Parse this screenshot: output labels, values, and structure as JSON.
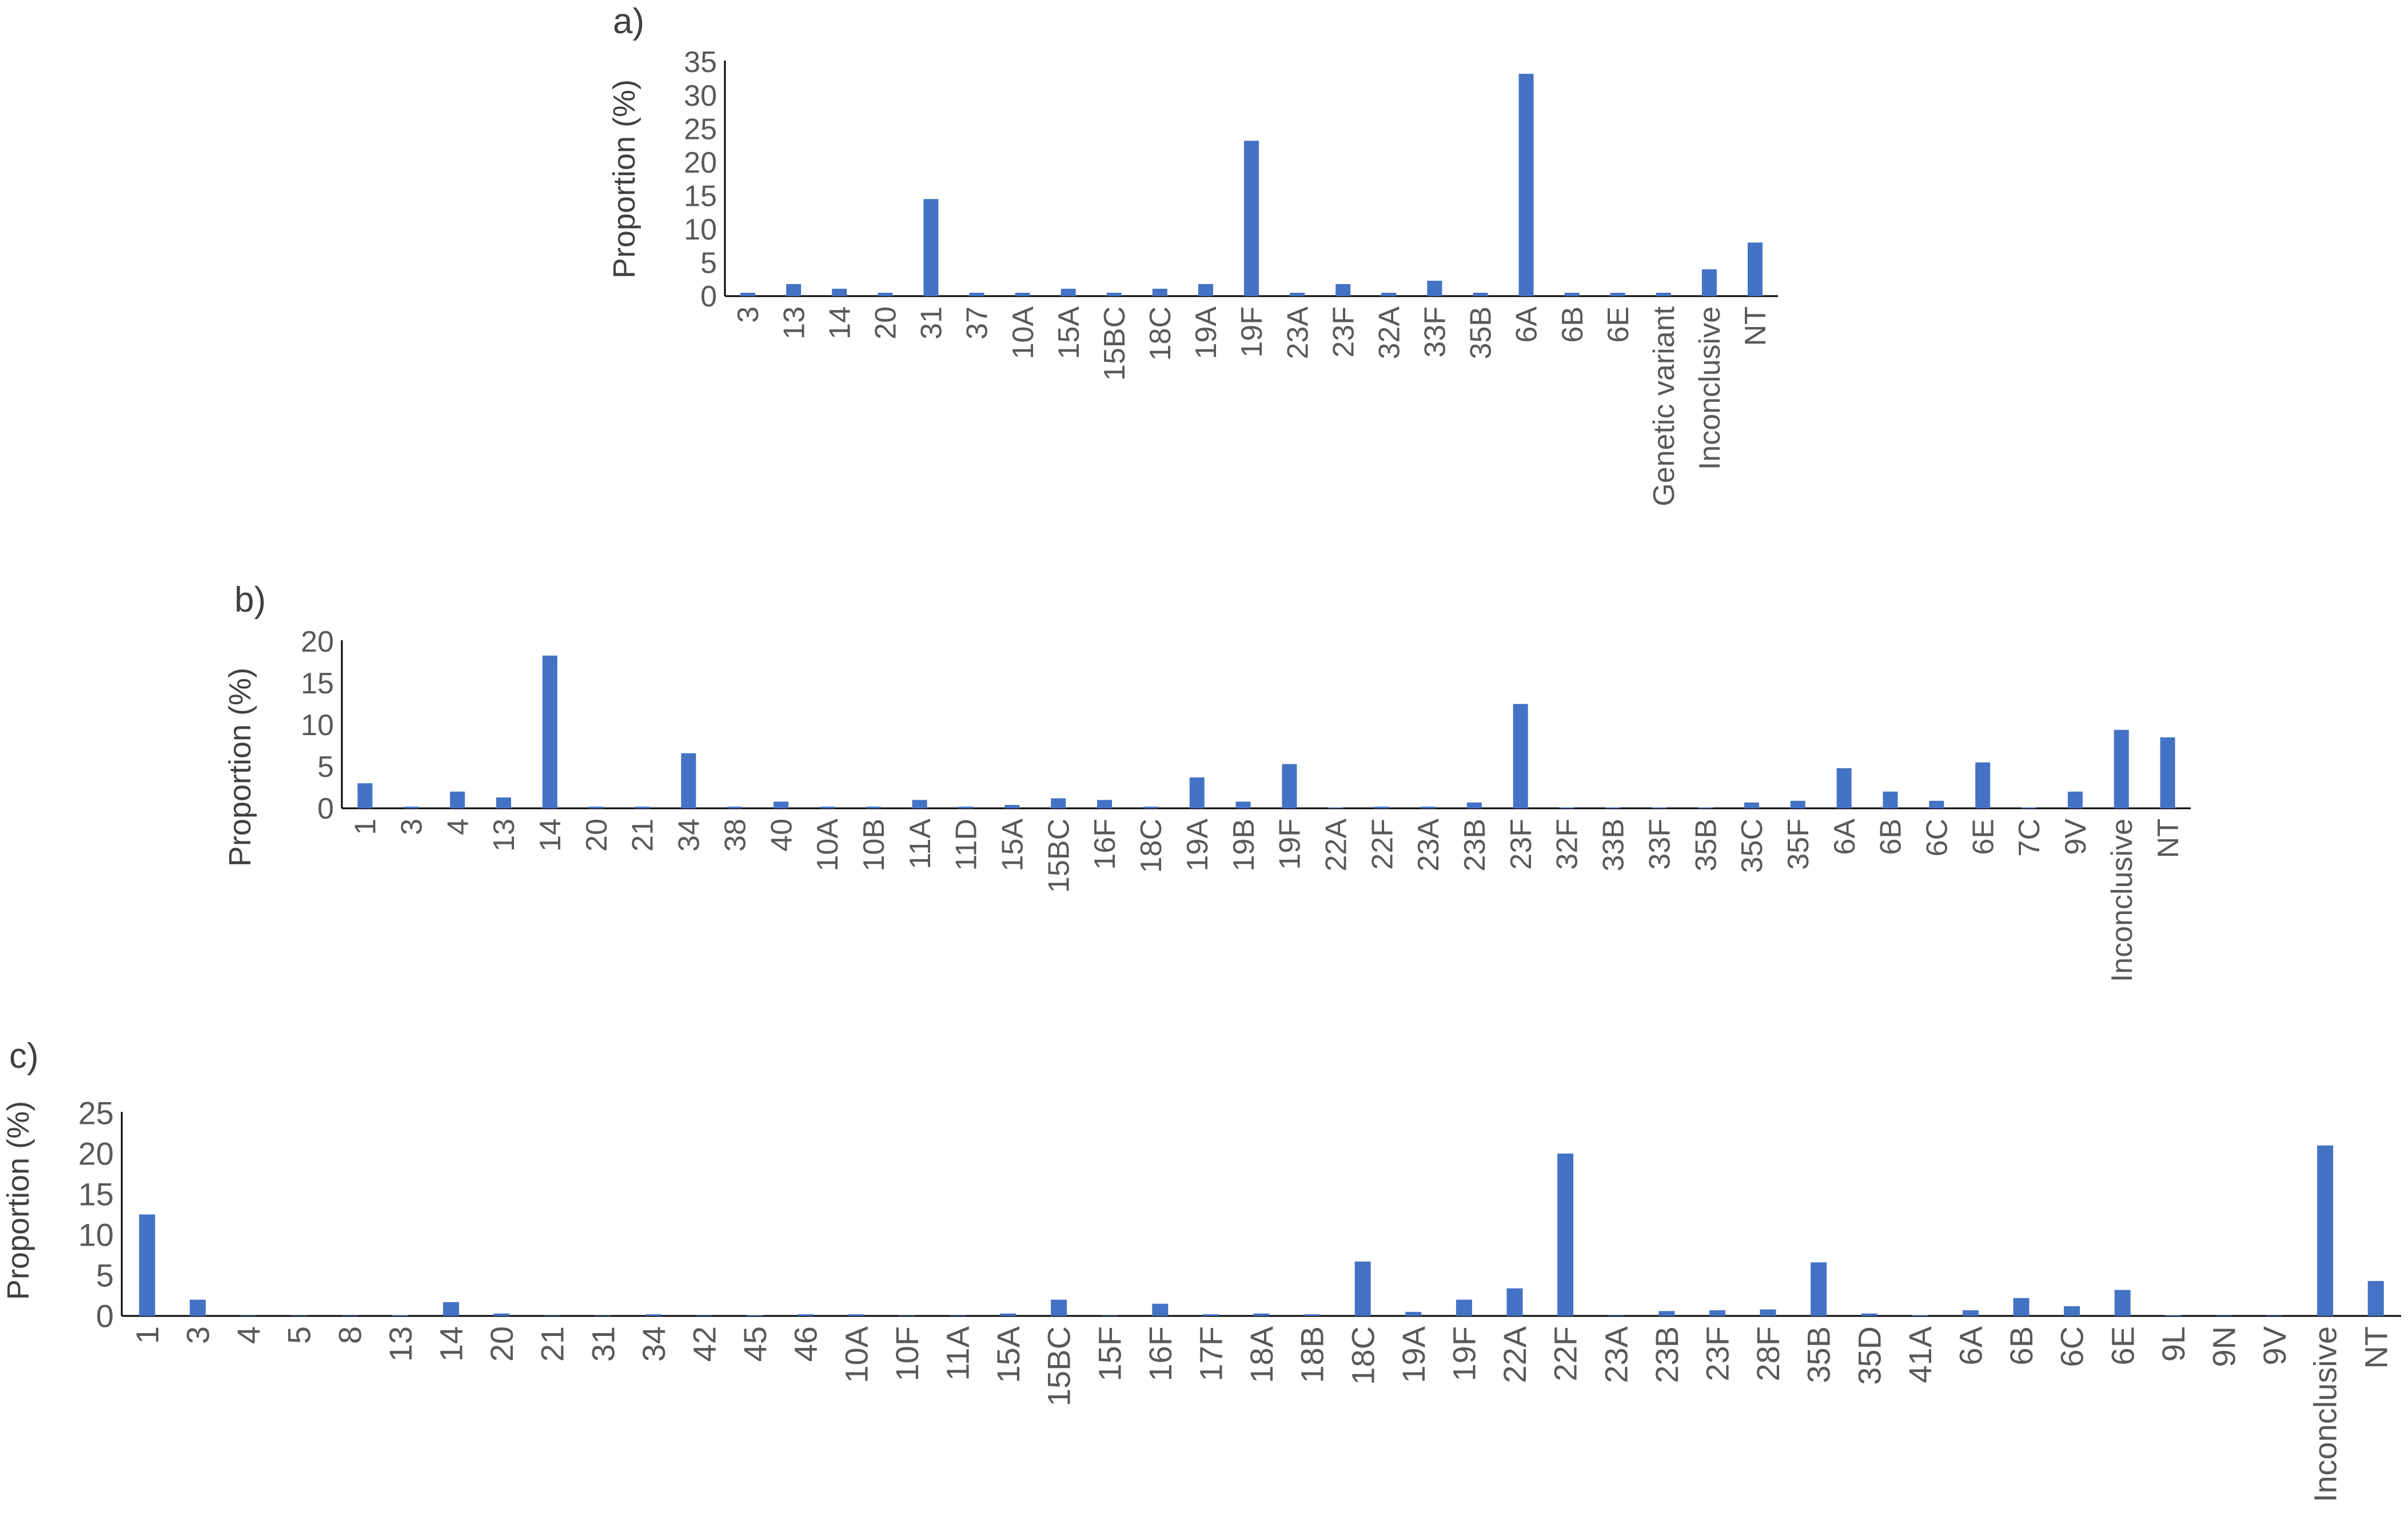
{
  "chart_data": [
    {
      "type": "bar",
      "panel_label": "a)",
      "ylabel": "Proportion (%)",
      "ylim": [
        0,
        35
      ],
      "yticks": [
        0,
        5,
        10,
        15,
        20,
        25,
        30,
        35
      ],
      "grid": false,
      "bar_color": "#4472C4",
      "categories": [
        "3",
        "13",
        "14",
        "20",
        "31",
        "37",
        "10A",
        "15A",
        "15BC",
        "18C",
        "19A",
        "19F",
        "23A",
        "23F",
        "32A",
        "33F",
        "35B",
        "6A",
        "6B",
        "6E",
        "Genetic variant",
        "Inconclusive",
        "NT"
      ],
      "values": [
        0.5,
        1.8,
        1.1,
        0.5,
        14.5,
        0.5,
        0.5,
        1.1,
        0.5,
        1.1,
        1.8,
        23.2,
        0.5,
        1.8,
        0.5,
        2.3,
        0.5,
        33.2,
        0.5,
        0.5,
        0.5,
        4.0,
        8.0
      ]
    },
    {
      "type": "bar",
      "panel_label": "b)",
      "ylabel": "Proportion (%)",
      "ylim": [
        0,
        20
      ],
      "yticks": [
        0,
        5,
        10,
        15,
        20
      ],
      "grid": false,
      "bar_color": "#4472C4",
      "categories": [
        "1",
        "3",
        "4",
        "13",
        "14",
        "20",
        "21",
        "34",
        "38",
        "40",
        "10A",
        "10B",
        "11A",
        "11D",
        "15A",
        "15BC",
        "16F",
        "18C",
        "19A",
        "19B",
        "19F",
        "22A",
        "22F",
        "23A",
        "23B",
        "23F",
        "32F",
        "33B",
        "33F",
        "35B",
        "35C",
        "35F",
        "6A",
        "6B",
        "6C",
        "6E",
        "7C",
        "9V",
        "Inconclusive",
        "NT"
      ],
      "values": [
        3.0,
        0.2,
        2.0,
        1.3,
        18.3,
        0.2,
        0.2,
        6.6,
        0.2,
        0.8,
        0.2,
        0.2,
        1.0,
        0.2,
        0.4,
        1.2,
        1.0,
        0.2,
        3.7,
        0.8,
        5.3,
        0.1,
        0.2,
        0.2,
        0.7,
        12.5,
        0.1,
        0.1,
        0.1,
        0.1,
        0.7,
        0.9,
        4.8,
        2.0,
        0.9,
        5.5,
        0.1,
        2.0,
        9.4,
        8.5
      ]
    },
    {
      "type": "bar",
      "panel_label": "c)",
      "ylabel": "Proportion (%)",
      "ylim": [
        0,
        25
      ],
      "yticks": [
        0,
        5,
        10,
        15,
        20,
        25
      ],
      "grid": false,
      "bar_color": "#4472C4",
      "categories": [
        "1",
        "3",
        "4",
        "5",
        "8",
        "13",
        "14",
        "20",
        "21",
        "31",
        "34",
        "42",
        "45",
        "46",
        "10A",
        "10F",
        "11A",
        "15A",
        "15BC",
        "15F",
        "16F",
        "17F",
        "18A",
        "18B",
        "18C",
        "19A",
        "19F",
        "22A",
        "22F",
        "23A",
        "23B",
        "23F",
        "28F",
        "35B",
        "35D",
        "41A",
        "6A",
        "6B",
        "6C",
        "6E",
        "9L",
        "9N",
        "9V",
        "Inconclusive",
        "NT"
      ],
      "values": [
        12.5,
        2.0,
        0.05,
        0.05,
        0.05,
        0.1,
        1.7,
        0.3,
        0.05,
        0.05,
        0.2,
        0.05,
        0.1,
        0.2,
        0.2,
        0.05,
        0.05,
        0.3,
        2.0,
        0.05,
        1.5,
        0.2,
        0.3,
        0.2,
        6.7,
        0.5,
        2.0,
        3.4,
        20.0,
        0.05,
        0.6,
        0.7,
        0.8,
        6.6,
        0.3,
        0.1,
        0.7,
        2.2,
        1.2,
        3.2,
        0.1,
        0.05,
        0.05,
        21.0,
        4.3
      ]
    }
  ]
}
